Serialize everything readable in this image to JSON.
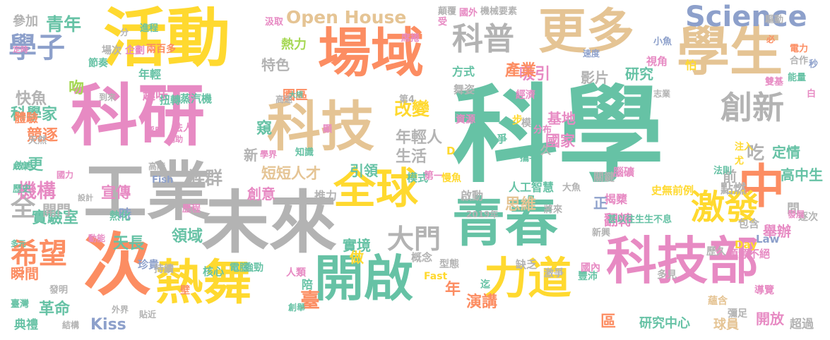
{
  "palette": {
    "green": "#66c2a5",
    "orange": "#fc8d62",
    "blue": "#8da0cb",
    "pink": "#e78ac3",
    "lime": "#a6d854",
    "yellow": "#ffd92f",
    "tan": "#e5c494",
    "gray": "#b3b3b3"
  },
  "words": [
    {
      "text": "科學",
      "color": "green"
    },
    {
      "text": "活動",
      "color": "yellow"
    },
    {
      "text": "科研",
      "color": "pink"
    },
    {
      "text": "場域",
      "color": "orange"
    },
    {
      "text": "更多",
      "color": "tan"
    },
    {
      "text": "學生",
      "color": "tan"
    },
    {
      "text": "青春",
      "color": "green"
    },
    {
      "text": "未來",
      "color": "gray"
    },
    {
      "text": "工業",
      "color": "gray"
    },
    {
      "text": "科技",
      "color": "tan"
    },
    {
      "text": "次",
      "color": "orange"
    },
    {
      "text": "中",
      "color": "orange"
    },
    {
      "text": "科技部",
      "color": "pink"
    },
    {
      "text": "開啟",
      "color": "green"
    },
    {
      "text": "熱舞",
      "color": "yellow"
    },
    {
      "text": "力道",
      "color": "yellow"
    },
    {
      "text": "全球",
      "color": "yellow"
    },
    {
      "text": "創新",
      "color": "gray"
    },
    {
      "text": "科普",
      "color": "gray"
    },
    {
      "text": "激發",
      "color": "yellow"
    },
    {
      "text": "學子",
      "color": "blue"
    },
    {
      "text": "希望",
      "color": "orange"
    },
    {
      "text": "大門",
      "color": "gray"
    },
    {
      "text": "Science",
      "color": "blue"
    },
    {
      "text": "Open House",
      "color": "tan"
    },
    {
      "text": "青年",
      "color": "green"
    },
    {
      "text": "全",
      "color": "gray"
    },
    {
      "text": "改變",
      "color": "yellow"
    },
    {
      "text": "吸引",
      "color": "pink"
    },
    {
      "text": "產業",
      "color": "orange"
    },
    {
      "text": "特色",
      "color": "gray"
    },
    {
      "text": "熱力",
      "color": "lime"
    },
    {
      "text": "快魚",
      "color": "gray"
    },
    {
      "text": "科學家",
      "color": "green"
    },
    {
      "text": "族群",
      "color": "gray"
    },
    {
      "text": "機構",
      "color": "pink"
    },
    {
      "text": "領域",
      "color": "green"
    },
    {
      "text": "宣傳",
      "color": "pink"
    },
    {
      "text": "短短人才",
      "color": "tan"
    },
    {
      "text": "創意",
      "color": "pink"
    },
    {
      "text": "思維",
      "color": "tan"
    },
    {
      "text": "翻轉",
      "color": "pink"
    },
    {
      "text": "舉辦",
      "color": "pink"
    },
    {
      "text": "實驗室",
      "color": "green"
    },
    {
      "text": "開門",
      "color": "gray"
    },
    {
      "text": "年輕人",
      "color": "gray"
    },
    {
      "text": "生活",
      "color": "gray"
    },
    {
      "text": "國家",
      "color": "pink"
    },
    {
      "text": "基地",
      "color": "pink"
    },
    {
      "text": "研究",
      "color": "green"
    },
    {
      "text": "影片",
      "color": "gray"
    },
    {
      "text": "演講",
      "color": "orange"
    },
    {
      "text": "研究中心",
      "color": "green"
    },
    {
      "text": "開放",
      "color": "pink"
    },
    {
      "text": "球員",
      "color": "tan"
    },
    {
      "text": "超過",
      "color": "gray"
    },
    {
      "text": "革命",
      "color": "green"
    },
    {
      "text": "典禮",
      "color": "green"
    },
    {
      "text": "Kiss",
      "color": "blue"
    },
    {
      "text": "瞬間",
      "color": "orange"
    },
    {
      "text": "吃",
      "color": "gray"
    },
    {
      "text": "定情",
      "color": "green"
    },
    {
      "text": "高中生",
      "color": "green"
    },
    {
      "text": "前",
      "color": "gray"
    },
    {
      "text": "點燃",
      "color": "gray"
    },
    {
      "text": "競逐",
      "color": "orange"
    },
    {
      "text": "更",
      "color": "green"
    },
    {
      "text": "吻",
      "color": "lime"
    },
    {
      "text": "參加",
      "color": "gray"
    },
    {
      "text": "體驗",
      "color": "orange"
    },
    {
      "text": "年輕",
      "color": "green"
    },
    {
      "text": "趣味",
      "color": "pink"
    },
    {
      "text": "蒸汽機",
      "color": "green"
    },
    {
      "text": "扭轉",
      "color": "green"
    },
    {
      "text": "園區",
      "color": "orange"
    },
    {
      "text": "舞姿",
      "color": "gray"
    },
    {
      "text": "方式",
      "color": "green"
    },
    {
      "text": "窺",
      "color": "green"
    },
    {
      "text": "新",
      "color": "gray"
    },
    {
      "text": "引領",
      "color": "green"
    },
    {
      "text": "推力",
      "color": "gray"
    },
    {
      "text": "啟動",
      "color": "gray"
    },
    {
      "text": "正",
      "color": "blue"
    },
    {
      "text": "揭櫫",
      "color": "pink"
    },
    {
      "text": "天長",
      "color": "green"
    },
    {
      "text": "實境",
      "color": "green"
    },
    {
      "text": "做",
      "color": "yellow"
    },
    {
      "text": "年",
      "color": "orange"
    },
    {
      "text": "臺",
      "color": "orange"
    },
    {
      "text": "區",
      "color": "orange"
    },
    {
      "text": "問",
      "color": "gray"
    },
    {
      "text": "人工智慧",
      "color": "green"
    },
    {
      "text": "史無前例",
      "color": "yellow"
    },
    {
      "text": "歷久",
      "color": "gray"
    },
    {
      "text": "源源不絕",
      "color": "pink"
    },
    {
      "text": "時",
      "color": "blue"
    },
    {
      "text": "熱化",
      "color": "green"
    },
    {
      "text": "珍貴",
      "color": "blue"
    },
    {
      "text": "持續",
      "color": "gray"
    },
    {
      "text": "核心",
      "color": "green"
    },
    {
      "text": "電腦",
      "color": "green"
    },
    {
      "text": "強勁",
      "color": "green"
    },
    {
      "text": "人類",
      "color": "pink"
    },
    {
      "text": "陪",
      "color": "green"
    },
    {
      "text": "概念",
      "color": "gray"
    },
    {
      "text": "型態",
      "color": "gray"
    },
    {
      "text": "Fast",
      "color": "yellow"
    },
    {
      "text": "迄",
      "color": "green"
    },
    {
      "text": "缺乏",
      "color": "gray"
    },
    {
      "text": "激爭",
      "color": "gray"
    },
    {
      "text": "豐沛",
      "color": "green"
    },
    {
      "text": "國內",
      "color": "pink"
    },
    {
      "text": "多見",
      "color": "gray"
    },
    {
      "text": "蘊含",
      "color": "tan"
    },
    {
      "text": "彌足",
      "color": "gray"
    },
    {
      "text": "導覽",
      "color": "pink"
    },
    {
      "text": "逐次",
      "color": "gray"
    },
    {
      "text": "發展",
      "color": "pink"
    },
    {
      "text": "包含",
      "color": "gray"
    },
    {
      "text": "Law",
      "color": "blue"
    },
    {
      "text": "Day",
      "color": "yellow"
    },
    {
      "text": "新興",
      "color": "gray"
    },
    {
      "text": "甚以往生生不息",
      "color": "green"
    },
    {
      "text": "將來",
      "color": "gray"
    },
    {
      "text": "2019年",
      "color": "gray"
    },
    {
      "text": "模式",
      "color": "green"
    },
    {
      "text": "第一",
      "color": "pink"
    },
    {
      "text": "慢魚",
      "color": "yellow"
    },
    {
      "text": "大魚",
      "color": "gray"
    },
    {
      "text": "關鍵",
      "color": "gray"
    },
    {
      "text": "腦礦",
      "color": "pink"
    },
    {
      "text": "法則",
      "color": "green"
    },
    {
      "text": "注入",
      "color": "yellow"
    },
    {
      "text": "尤",
      "color": "yellow"
    },
    {
      "text": "攜手",
      "color": "green"
    },
    {
      "text": "久",
      "color": "gray"
    },
    {
      "text": "爭",
      "color": "green"
    },
    {
      "text": "步",
      "color": "yellow"
    },
    {
      "text": "模",
      "color": "gray"
    },
    {
      "text": "分布",
      "color": "pink"
    },
    {
      "text": "D",
      "color": "yellow"
    },
    {
      "text": "資源",
      "color": "pink"
    },
    {
      "text": "第4",
      "color": "gray"
    },
    {
      "text": "經濟",
      "color": "pink"
    },
    {
      "text": "志業",
      "color": "gray"
    },
    {
      "text": "白",
      "color": "pink"
    },
    {
      "text": "能量",
      "color": "green"
    },
    {
      "text": "雙基",
      "color": "pink"
    },
    {
      "text": "秒",
      "color": "blue"
    },
    {
      "text": "合作",
      "color": "gray"
    },
    {
      "text": "視角",
      "color": "pink"
    },
    {
      "text": "速度",
      "color": "blue"
    },
    {
      "text": "怕",
      "color": "yellow"
    },
    {
      "text": "電力",
      "color": "orange"
    },
    {
      "text": "必",
      "color": "orange"
    },
    {
      "text": "小魚",
      "color": "blue"
    },
    {
      "text": "驅動",
      "color": "gray"
    },
    {
      "text": "受",
      "color": "pink"
    },
    {
      "text": "國外",
      "color": "pink"
    },
    {
      "text": "機械要素",
      "color": "gray"
    },
    {
      "text": "顛覆",
      "color": "gray"
    },
    {
      "text": "席捲",
      "color": "pink"
    },
    {
      "text": "汲取",
      "color": "pink"
    },
    {
      "text": "進程",
      "color": "green"
    },
    {
      "text": "分",
      "color": "gray"
    },
    {
      "text": "企劃",
      "color": "pink"
    },
    {
      "text": "兩百多",
      "color": "orange"
    },
    {
      "text": "場次",
      "color": "gray"
    },
    {
      "text": "定時",
      "color": "pink"
    },
    {
      "text": "節奏",
      "color": "green"
    },
    {
      "text": "天然",
      "color": "gray"
    },
    {
      "text": "到來",
      "color": "gray"
    },
    {
      "text": "呼應",
      "color": "pink"
    },
    {
      "text": "法人",
      "color": "pink"
    },
    {
      "text": "高速",
      "color": "gray"
    },
    {
      "text": "大規",
      "color": "green"
    },
    {
      "text": "顯",
      "color": "pink"
    },
    {
      "text": "補助",
      "color": "pink"
    },
    {
      "text": "學界",
      "color": "pink"
    },
    {
      "text": "知識",
      "color": "green"
    },
    {
      "text": "啟迪",
      "color": "green"
    },
    {
      "text": "成果",
      "color": "green"
    },
    {
      "text": "國力",
      "color": "pink"
    },
    {
      "text": "高階",
      "color": "gray"
    },
    {
      "text": "Fish",
      "color": "blue"
    },
    {
      "text": "歷史",
      "color": "green"
    },
    {
      "text": "設計",
      "color": "gray"
    },
    {
      "text": "動能",
      "color": "pink"
    },
    {
      "text": "歷程",
      "color": "pink"
    },
    {
      "text": "多元",
      "color": "green"
    },
    {
      "text": "發明",
      "color": "gray"
    },
    {
      "text": "臺灣",
      "color": "green"
    },
    {
      "text": "結構",
      "color": "gray"
    },
    {
      "text": "外界",
      "color": "gray"
    },
    {
      "text": "貼近",
      "color": "gray"
    },
    {
      "text": "壁",
      "color": "orange"
    },
    {
      "text": "創舉",
      "color": "green"
    }
  ]
}
